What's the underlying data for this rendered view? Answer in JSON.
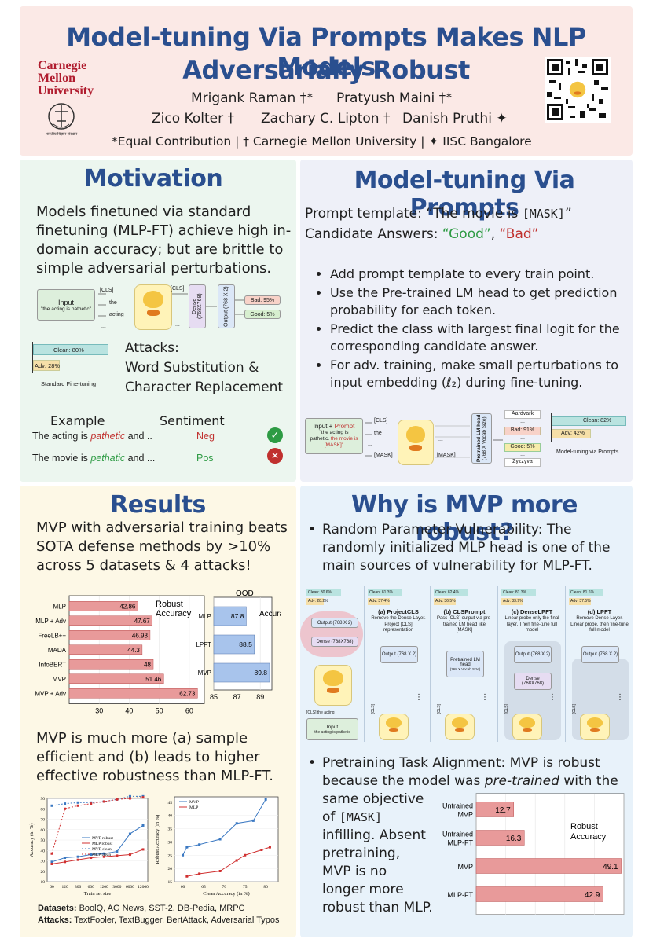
{
  "header": {
    "title_line1": "Model-tuning Via Prompts Makes NLP Models",
    "title_line2": "Adversarially Robust",
    "authors_line1_a": "Mrigank Raman †*",
    "authors_line1_b": "Pratyush Maini †*",
    "authors_line2_a": "Zico Kolter †",
    "authors_line2_b": "Zachary C. Lipton †",
    "authors_line2_c": "Danish Pruthi ✦",
    "affiliations": "*Equal Contribution | † Carnegie Mellon University | ✦ IISC Bangalore",
    "logo": [
      "Carnegie",
      "Mellon",
      "University"
    ],
    "iisc_text": "भारतीय विज्ञान संस्थान"
  },
  "motivation": {
    "title": "Motivation",
    "text": "Models finetuned via standard finetuning (MLP-FT) achieve high in-domain accuracy; but are brittle to simple adversarial perturbations.",
    "diag": {
      "input": "Input",
      "input_q": "\"the acting is pathetic\"",
      "cls": "[CLS]",
      "the": "the",
      "acting": "acting",
      "dots": "...",
      "cls2": "[CLS]",
      "dense": "Dense (768X768)",
      "output": "Output (768 X 2)",
      "bad": "Bad: 95%",
      "good": "Good: 5%"
    },
    "clean": "Clean: 80%",
    "adv": "Adv: 28%",
    "std": "Standard Fine-tuning",
    "attacks_title": "Attacks:",
    "attacks_1": "Word Substitution &",
    "attacks_2": "Character Replacement",
    "ex_head": "Example",
    "sent_head": "Sentiment",
    "ex1_a": "The acting is ",
    "ex1_b": "pathetic",
    "ex1_c": " and ..",
    "ex1_s": "Neg",
    "ex2_a": "The movie is ",
    "ex2_b": "pethatic",
    "ex2_c": " and ...",
    "ex2_s": "Pos"
  },
  "mvp": {
    "title": "Model-tuning Via Prompts",
    "pt_label": "Prompt template:  “The movie is ",
    "pt_mask": "[MASK]",
    "pt_end": "”",
    "ca_label": "Candidate Answers: ",
    "ca_good": "“Good”",
    "ca_sep": ", ",
    "ca_bad": "“Bad”",
    "bullets": [
      "Add prompt template to every train point.",
      "Use the Pre-trained LM head to get prediction probability for each token.",
      "Predict the class with largest final logit for the corresponding candidate answer.",
      "For adv. training, make small perturbations to input embedding (ℓ₂) during fine-tuning."
    ],
    "diag": {
      "input": "Input + ",
      "prompt": "Prompt",
      "q1": "\"the acting is",
      "q2": "pathetic. ",
      "q3": "the movie is [MASK]\"",
      "cls": "[CLS]",
      "the": "the",
      "dots": "...",
      "mask": "[MASK]",
      "mask2": "[MASK]",
      "head": "Pretrained LM head",
      "head_sub": "(768 X Vocab Size)",
      "aardvark": "Aardvark",
      "bad": "Bad: 91%",
      "good": "Good: 5%",
      "zyzz": "Zyzzyva",
      "clean": "Clean: 82%",
      "adv": "Adv: 42%",
      "label": "Model-tuning via Prompts"
    }
  },
  "results": {
    "title": "Results",
    "text": "MVP with adversarial training beats SOTA defense methods by >10% across 5 datasets & 4 attacks!",
    "text2": "MVP is much more (a) sample efficient and (b) leads to higher effective robustness than MLP-FT.",
    "datasets_label": "Datasets:",
    "datasets": " BoolQ, AG News, SST-2, DB-Pedia, MRPC",
    "attacks_label": "Attacks:",
    "attacks": " TextFooler, TextBugger, BertAttack, Adversarial Typos"
  },
  "why": {
    "title": "Why is MVP more robust?",
    "b1_head": "Random Parameter Vulnerability:",
    "b1_text": " The randomly initialized MLP head is one of the main sources of vulnerability for MLP-FT.",
    "b2_head": "Pretraining Task Alignment:",
    "b2_text": " MVP is robust because the model was ",
    "b2_em": "pre-trained",
    "b2_text2": " with the",
    "b2_cont1": "same objective",
    "b2_cont2a": "of ",
    "b2_cont2b": "[MASK]",
    "b2_cont3": "infilling. Absent",
    "b2_cont4": "pretraining,",
    "b2_cont5": "MVP is no",
    "b2_cont6": "longer more",
    "b2_cont7": "robust than MLP.",
    "variants": [
      {
        "clean": "Clean: 80.6%",
        "adv": "Adv: 28.2%"
      },
      {
        "clean": "Clean: 81.3%",
        "adv": "Adv: 37.4%",
        "name": "(a) ProjectCLS",
        "desc": "Remove the Dense Layer. Project [CLS] representation",
        "out": "Output (768 X 2)"
      },
      {
        "clean": "Clean: 82.4%",
        "adv": "Adv: 36.5%",
        "name": "(b) CLSPrompt",
        "desc": "Pass [CLS] output via pre-trained LM head like [MASK]",
        "out": "Pretrained LM head",
        "out_sub": "(768 X Vocab Size)"
      },
      {
        "clean": "Clean: 81.3%",
        "adv": "Adv: 33.9%",
        "name": "(c) DenseLPFT",
        "desc": "Linear probe only the final layer. Then fine-tune full model",
        "out": "Output (768 X 2)",
        "dense": "Dense (768X768)"
      },
      {
        "clean": "Clean: 81.6%",
        "adv": "Adv: 37.5%",
        "name": "(d) LPFT",
        "desc": "Remove Dense Layer. Linear probe, then fine-tune full model",
        "out": "Output (768 X 2)"
      }
    ],
    "arch": {
      "output": "Output (768 X 2)",
      "dense": "Dense (768X768)",
      "cls": "[CLS] the  acting",
      "input": "Input",
      "input_q": "the acting is pathetic",
      "cls_small": "[CLS]",
      "dots": "⋮"
    }
  },
  "chart_data": [
    {
      "type": "bar",
      "orientation": "horizontal",
      "categories": [
        "MLP",
        "MLP + Adv",
        "FreeLB++",
        "MADA",
        "InfoBERT",
        "MVP",
        "MVP + Adv"
      ],
      "values": [
        42.86,
        47.67,
        46.93,
        44.3,
        48,
        51.46,
        62.73
      ],
      "ylabel": "Robust Accuracy",
      "xlim": [
        20,
        65
      ],
      "xticks": [
        30,
        40,
        50,
        60
      ]
    },
    {
      "type": "bar",
      "orientation": "horizontal",
      "categories": [
        "MLP",
        "LPFT",
        "MVP"
      ],
      "values": [
        87.8,
        88.5,
        89.8
      ],
      "ylabel": "OOD Accuracy",
      "xlim": [
        85,
        90
      ],
      "xticks": [
        85,
        87,
        89
      ]
    },
    {
      "type": "line",
      "x": [
        "60",
        "120",
        "300",
        "600",
        "1200",
        "3000",
        "6000",
        "12000"
      ],
      "series": [
        {
          "name": "MVP robust",
          "values": [
            29,
            33,
            34,
            36,
            37,
            39,
            56,
            64
          ]
        },
        {
          "name": "MLP robust",
          "values": [
            27,
            29,
            31,
            33,
            34,
            35,
            36,
            41
          ]
        },
        {
          "name": "MVP clean",
          "values": [
            83,
            85,
            86,
            86,
            87,
            89,
            92,
            92
          ]
        },
        {
          "name": "MLP clean",
          "values": [
            37,
            80,
            83,
            85,
            87,
            89,
            90,
            91
          ]
        }
      ],
      "xlabel": "Train set size",
      "ylabel": "Accuracy (in %)",
      "ylim": [
        10,
        90
      ],
      "yticks": [
        10,
        20,
        30,
        40,
        50,
        60,
        70,
        80,
        90
      ]
    },
    {
      "type": "line",
      "x": [
        60,
        65,
        70,
        75,
        80
      ],
      "series": [
        {
          "name": "MVP",
          "points": [
            [
              60,
              25
            ],
            [
              61,
              28
            ],
            [
              64,
              29
            ],
            [
              69,
              31
            ],
            [
              73,
              37
            ],
            [
              77,
              38
            ],
            [
              80,
              46
            ]
          ]
        },
        {
          "name": "MLP",
          "points": [
            [
              61,
              17
            ],
            [
              64,
              18
            ],
            [
              69,
              19
            ],
            [
              73,
              23
            ],
            [
              75,
              25
            ],
            [
              79,
              27
            ],
            [
              81,
              28
            ]
          ]
        }
      ],
      "xlabel": "Clean Accuracy (in %)",
      "ylabel": "Robust Accuracy (in %)",
      "xlim": [
        58,
        83
      ],
      "ylim": [
        15,
        47
      ],
      "xticks": [
        60,
        65,
        70,
        75,
        80
      ],
      "yticks": [
        15,
        20,
        25,
        30,
        35,
        40,
        45
      ]
    },
    {
      "type": "bar",
      "orientation": "horizontal",
      "categories": [
        "Untrained MVP",
        "Untrained MLP-FT",
        "MVP",
        "MLP-FT"
      ],
      "values": [
        12.7,
        16.3,
        49.1,
        42.9
      ],
      "ylabel": "Robust Accuracy",
      "xlim": [
        0,
        50
      ],
      "xticks": [
        0,
        10,
        20,
        30,
        40,
        50
      ]
    }
  ],
  "colors": {
    "header_bg": "#fbe9e6",
    "motivation_bg": "#ecf6ef",
    "mvp_bg": "#eef0f8",
    "results_bg": "#fdf8e6",
    "why_bg": "#e8f2fa",
    "title_blue": "#2a4f8f",
    "bar_red": "#e89a9a",
    "bar_blue": "#a8c4ec",
    "green": "#2e9b44",
    "red": "#c0302e"
  }
}
